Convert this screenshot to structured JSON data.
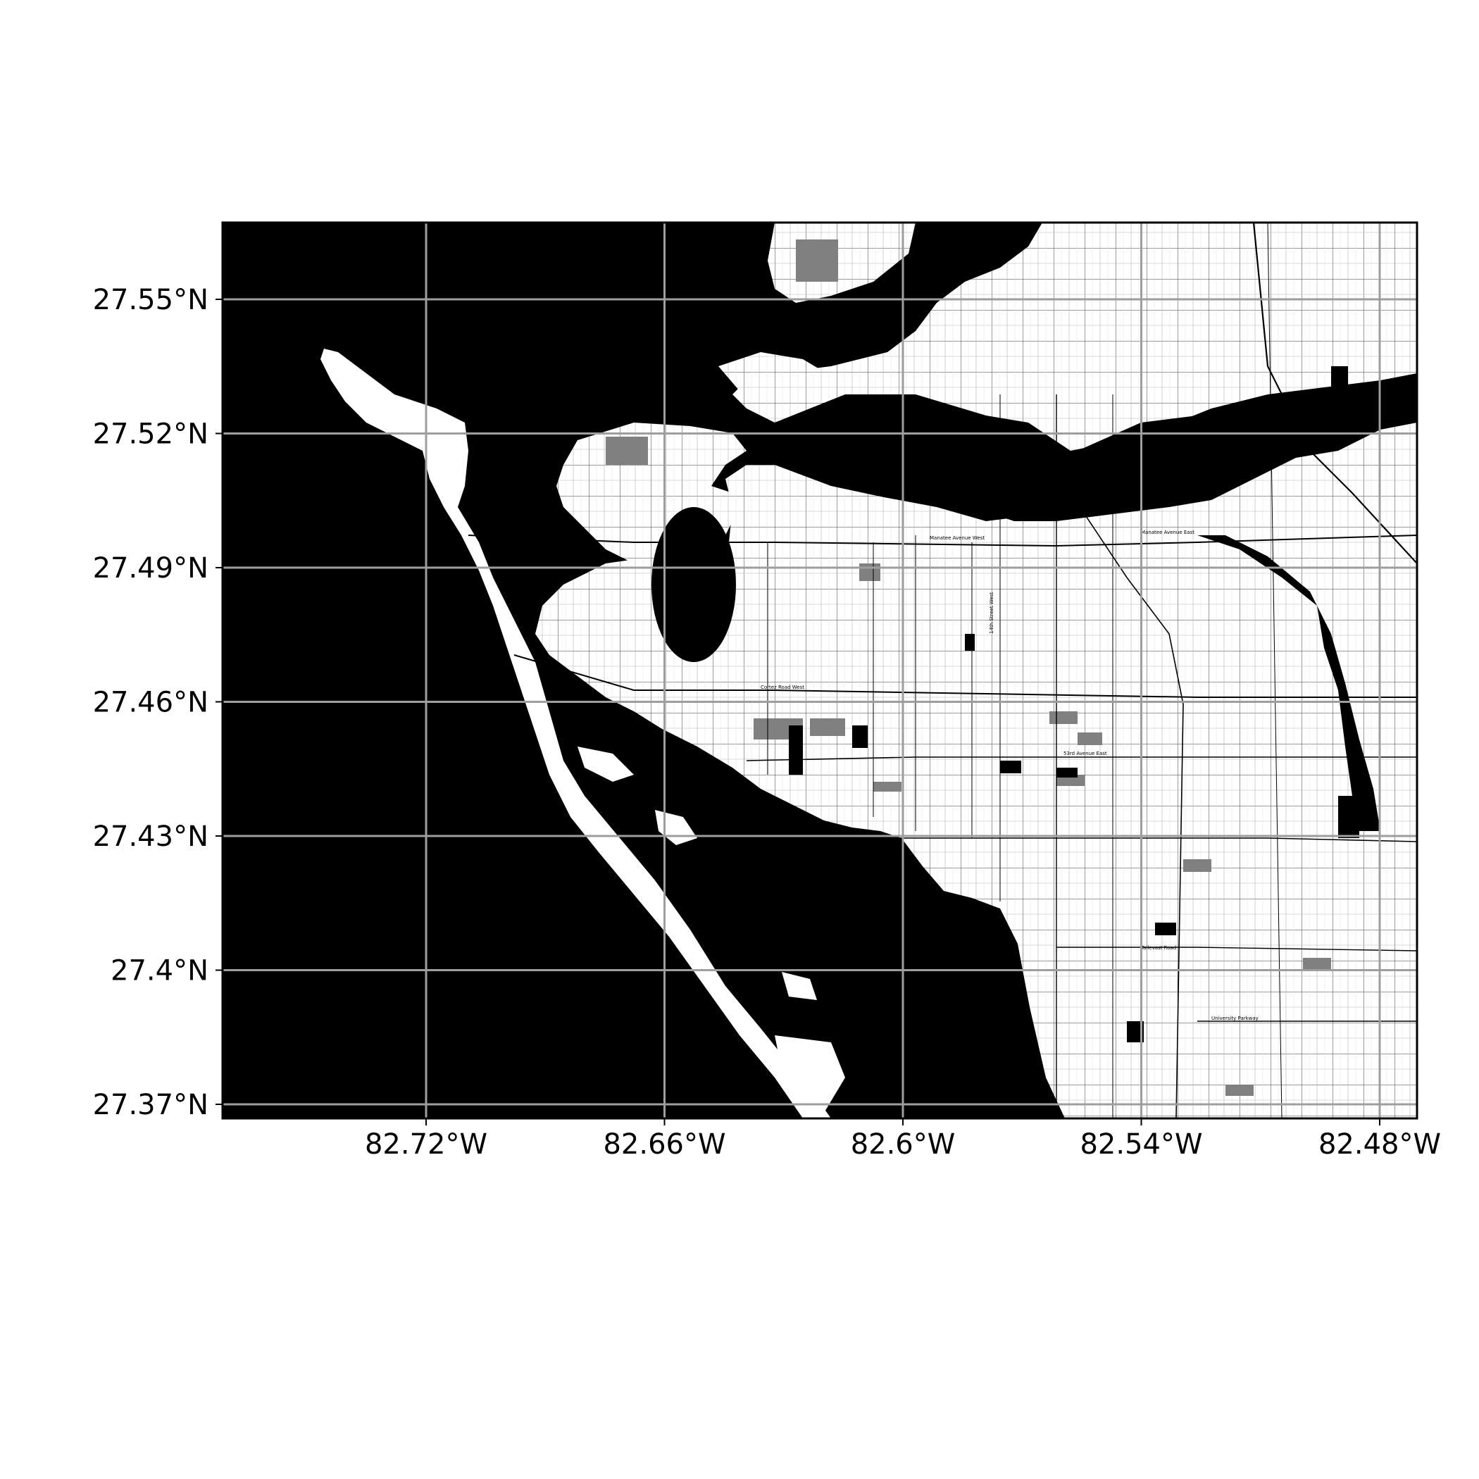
{
  "map": {
    "type": "map",
    "style": "black-water-white-land street map with graticule",
    "colors": {
      "water": "#000000",
      "land": "#ffffff",
      "roads": "#000000",
      "parks": "#808080",
      "gridlines": "#9e9e9e",
      "frame": "#000000"
    },
    "grid": true,
    "longitude_ticks": [
      {
        "value": -82.72,
        "label": "82.72°W"
      },
      {
        "value": -82.66,
        "label": "82.66°W"
      },
      {
        "value": -82.6,
        "label": "82.6°W"
      },
      {
        "value": -82.54,
        "label": "82.54°W"
      },
      {
        "value": -82.48,
        "label": "82.48°W"
      }
    ],
    "latitude_ticks": [
      {
        "value": 27.55,
        "label": "27.55°N"
      },
      {
        "value": 27.52,
        "label": "27.52°N"
      },
      {
        "value": 27.49,
        "label": "27.49°N"
      },
      {
        "value": 27.46,
        "label": "27.46°N"
      },
      {
        "value": 27.43,
        "label": "27.43°N"
      },
      {
        "value": 27.4,
        "label": "27.4°N"
      },
      {
        "value": 27.37,
        "label": "27.37°N"
      }
    ],
    "street_labels": [
      "Manatee Avenue West",
      "Manatee Avenue East",
      "Cortez Road West",
      "53rd Avenue East",
      "Tallevast Road",
      "University Parkway",
      "14th Street West"
    ]
  }
}
